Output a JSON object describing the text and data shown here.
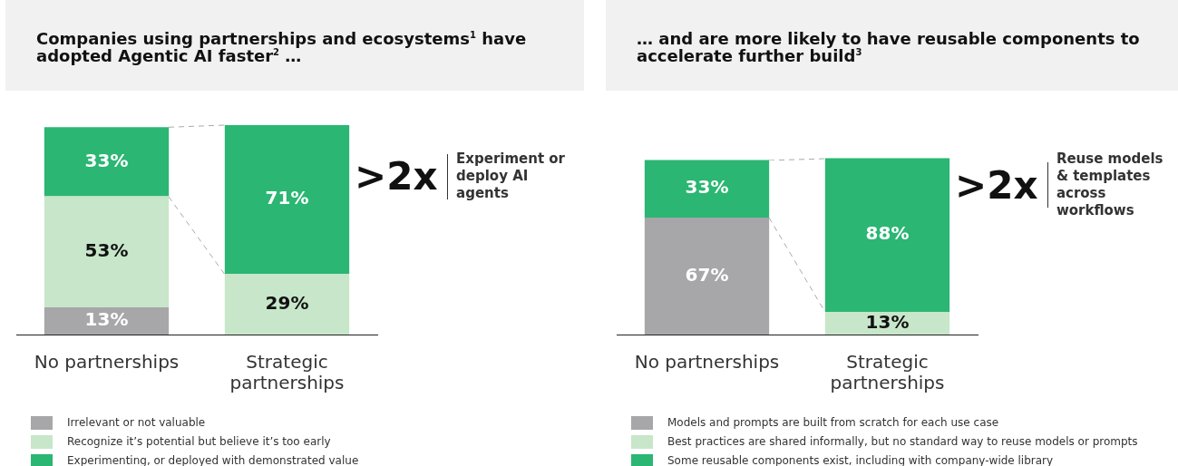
{
  "chart_data": [
    {
      "type": "bar",
      "title": "Companies using partnerships and ecosystems$^{1}$ have adopted Agentic AI faster$^{2}$ …",
      "categories": [
        "No partnerships",
        "Strategic partnerships"
      ],
      "stacked": true,
      "tick_labels": "x",
      "legend": "bottom",
      "series": [
        {
          "name": "Irrelevant or not valuable",
          "color": "#a7a7a9",
          "values": [
            13,
            null
          ],
          "value_labels": [
            "13%",
            null
          ]
        },
        {
          "name": "Recognize it’s potential but believe it’s too early",
          "color": "#c8e6c9",
          "values": [
            53,
            29
          ],
          "value_labels": [
            "53%",
            "29%"
          ]
        },
        {
          "name": "Experimenting, or deployed with demonstrated value",
          "color": "#2bb673",
          "values": [
            33,
            71
          ],
          "value_labels": [
            "33%",
            "71%"
          ]
        }
      ],
      "annotations": [
        ">2x",
        "Experiment or deploy AI agents"
      ]
    },
    {
      "type": "bar",
      "title": "… and are more likely to have reusable components to accelerate further build$^{3}$",
      "categories": [
        "No partnerships",
        "Strategic partnerships"
      ],
      "stacked": true,
      "tick_labels": "x",
      "legend": "bottom",
      "series": [
        {
          "name": "Models and prompts are built from scratch for each use case",
          "color": "#a7a7a9",
          "values": [
            67,
            null
          ],
          "value_labels": [
            "67%",
            null
          ]
        },
        {
          "name": "Best practices are shared informally, but no standard way to reuse models or prompts",
          "color": "#c8e6c9",
          "values": [
            null,
            13
          ],
          "value_labels": [
            null,
            "13%"
          ]
        },
        {
          "name": "Some reusable components exist, including with company-wide library",
          "color": "#2bb673",
          "values": [
            33,
            88
          ],
          "value_labels": [
            "33%",
            "88%"
          ]
        }
      ],
      "annotations": [
        ">2x",
        "Reuse models & templates across workflows"
      ]
    }
  ]
}
